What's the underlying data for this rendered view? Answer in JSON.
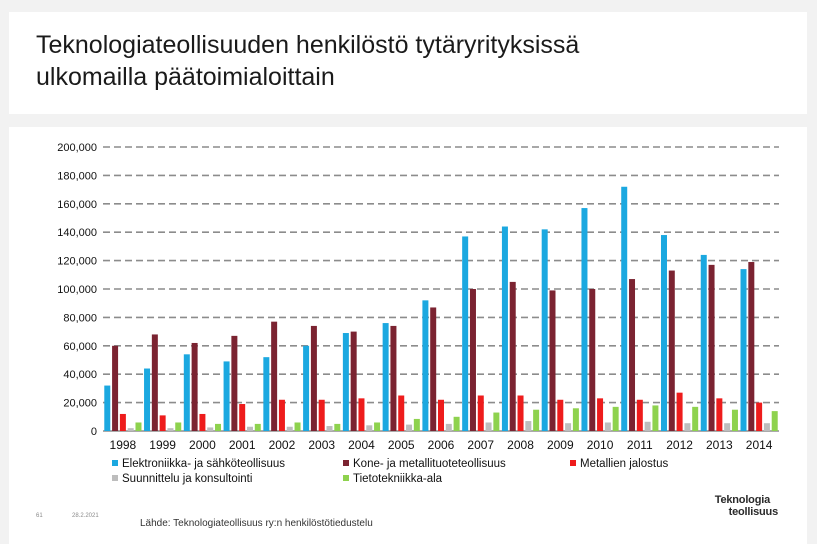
{
  "slide": {
    "title_line1": "Teknologiateollisuuden henkilöstö tytäryrityksissä",
    "title_line2": "ulkomailla päätoimialoittain",
    "page_number": "61",
    "date": "28.2.2021",
    "source": "Lähde: Teknologiateollisuus ry:n henkilöstötiedustelu",
    "logo_line1": "Teknologia",
    "logo_line2": "teollisuus"
  },
  "chart_data": {
    "type": "bar",
    "title": "",
    "xlabel": "",
    "ylabel": "",
    "ylim": [
      0,
      200000
    ],
    "ytick_step": 20000,
    "ytick_labels": [
      "0",
      "20,000",
      "40,000",
      "60,000",
      "80,000",
      "100,000",
      "120,000",
      "140,000",
      "160,000",
      "180,000",
      "200,000"
    ],
    "grid": true,
    "legend_position": "bottom",
    "categories": [
      "1998",
      "1999",
      "2000",
      "2001",
      "2002",
      "2003",
      "2004",
      "2005",
      "2006",
      "2007",
      "2008",
      "2009",
      "2010",
      "2011",
      "2012",
      "2013",
      "2014"
    ],
    "series": [
      {
        "name": "Elektroniikka- ja sähköteollisuus",
        "color": "#1ba8e0",
        "values": [
          32000,
          44000,
          54000,
          49000,
          52000,
          60000,
          69000,
          76000,
          92000,
          137000,
          144000,
          142000,
          157000,
          172000,
          138000,
          124000,
          114000
        ]
      },
      {
        "name": "Kone- ja metallituoteteollisuus",
        "color": "#7b2331",
        "values": [
          60000,
          68000,
          62000,
          67000,
          77000,
          74000,
          70000,
          74000,
          87000,
          100000,
          105000,
          99000,
          100000,
          107000,
          113000,
          117000,
          119000
        ]
      },
      {
        "name": "Metallien jalostus",
        "color": "#ee1c1c",
        "values": [
          12000,
          11000,
          12000,
          19000,
          22000,
          22000,
          23000,
          25000,
          22000,
          25000,
          25000,
          22000,
          23000,
          22000,
          27000,
          23000,
          20000
        ]
      },
      {
        "name": "Suunnittelu ja konsultointi",
        "color": "#bdbdbd",
        "values": [
          2000,
          2000,
          2500,
          3000,
          3000,
          3500,
          4000,
          4500,
          5000,
          6000,
          7000,
          5500,
          6000,
          6500,
          5500,
          5500,
          5500
        ]
      },
      {
        "name": "Tietotekniikka-ala",
        "color": "#8ed24e",
        "values": [
          6000,
          6000,
          5000,
          5000,
          6000,
          5000,
          6000,
          8500,
          10000,
          13000,
          15000,
          16000,
          17000,
          18000,
          17000,
          15000,
          14000
        ]
      }
    ]
  }
}
